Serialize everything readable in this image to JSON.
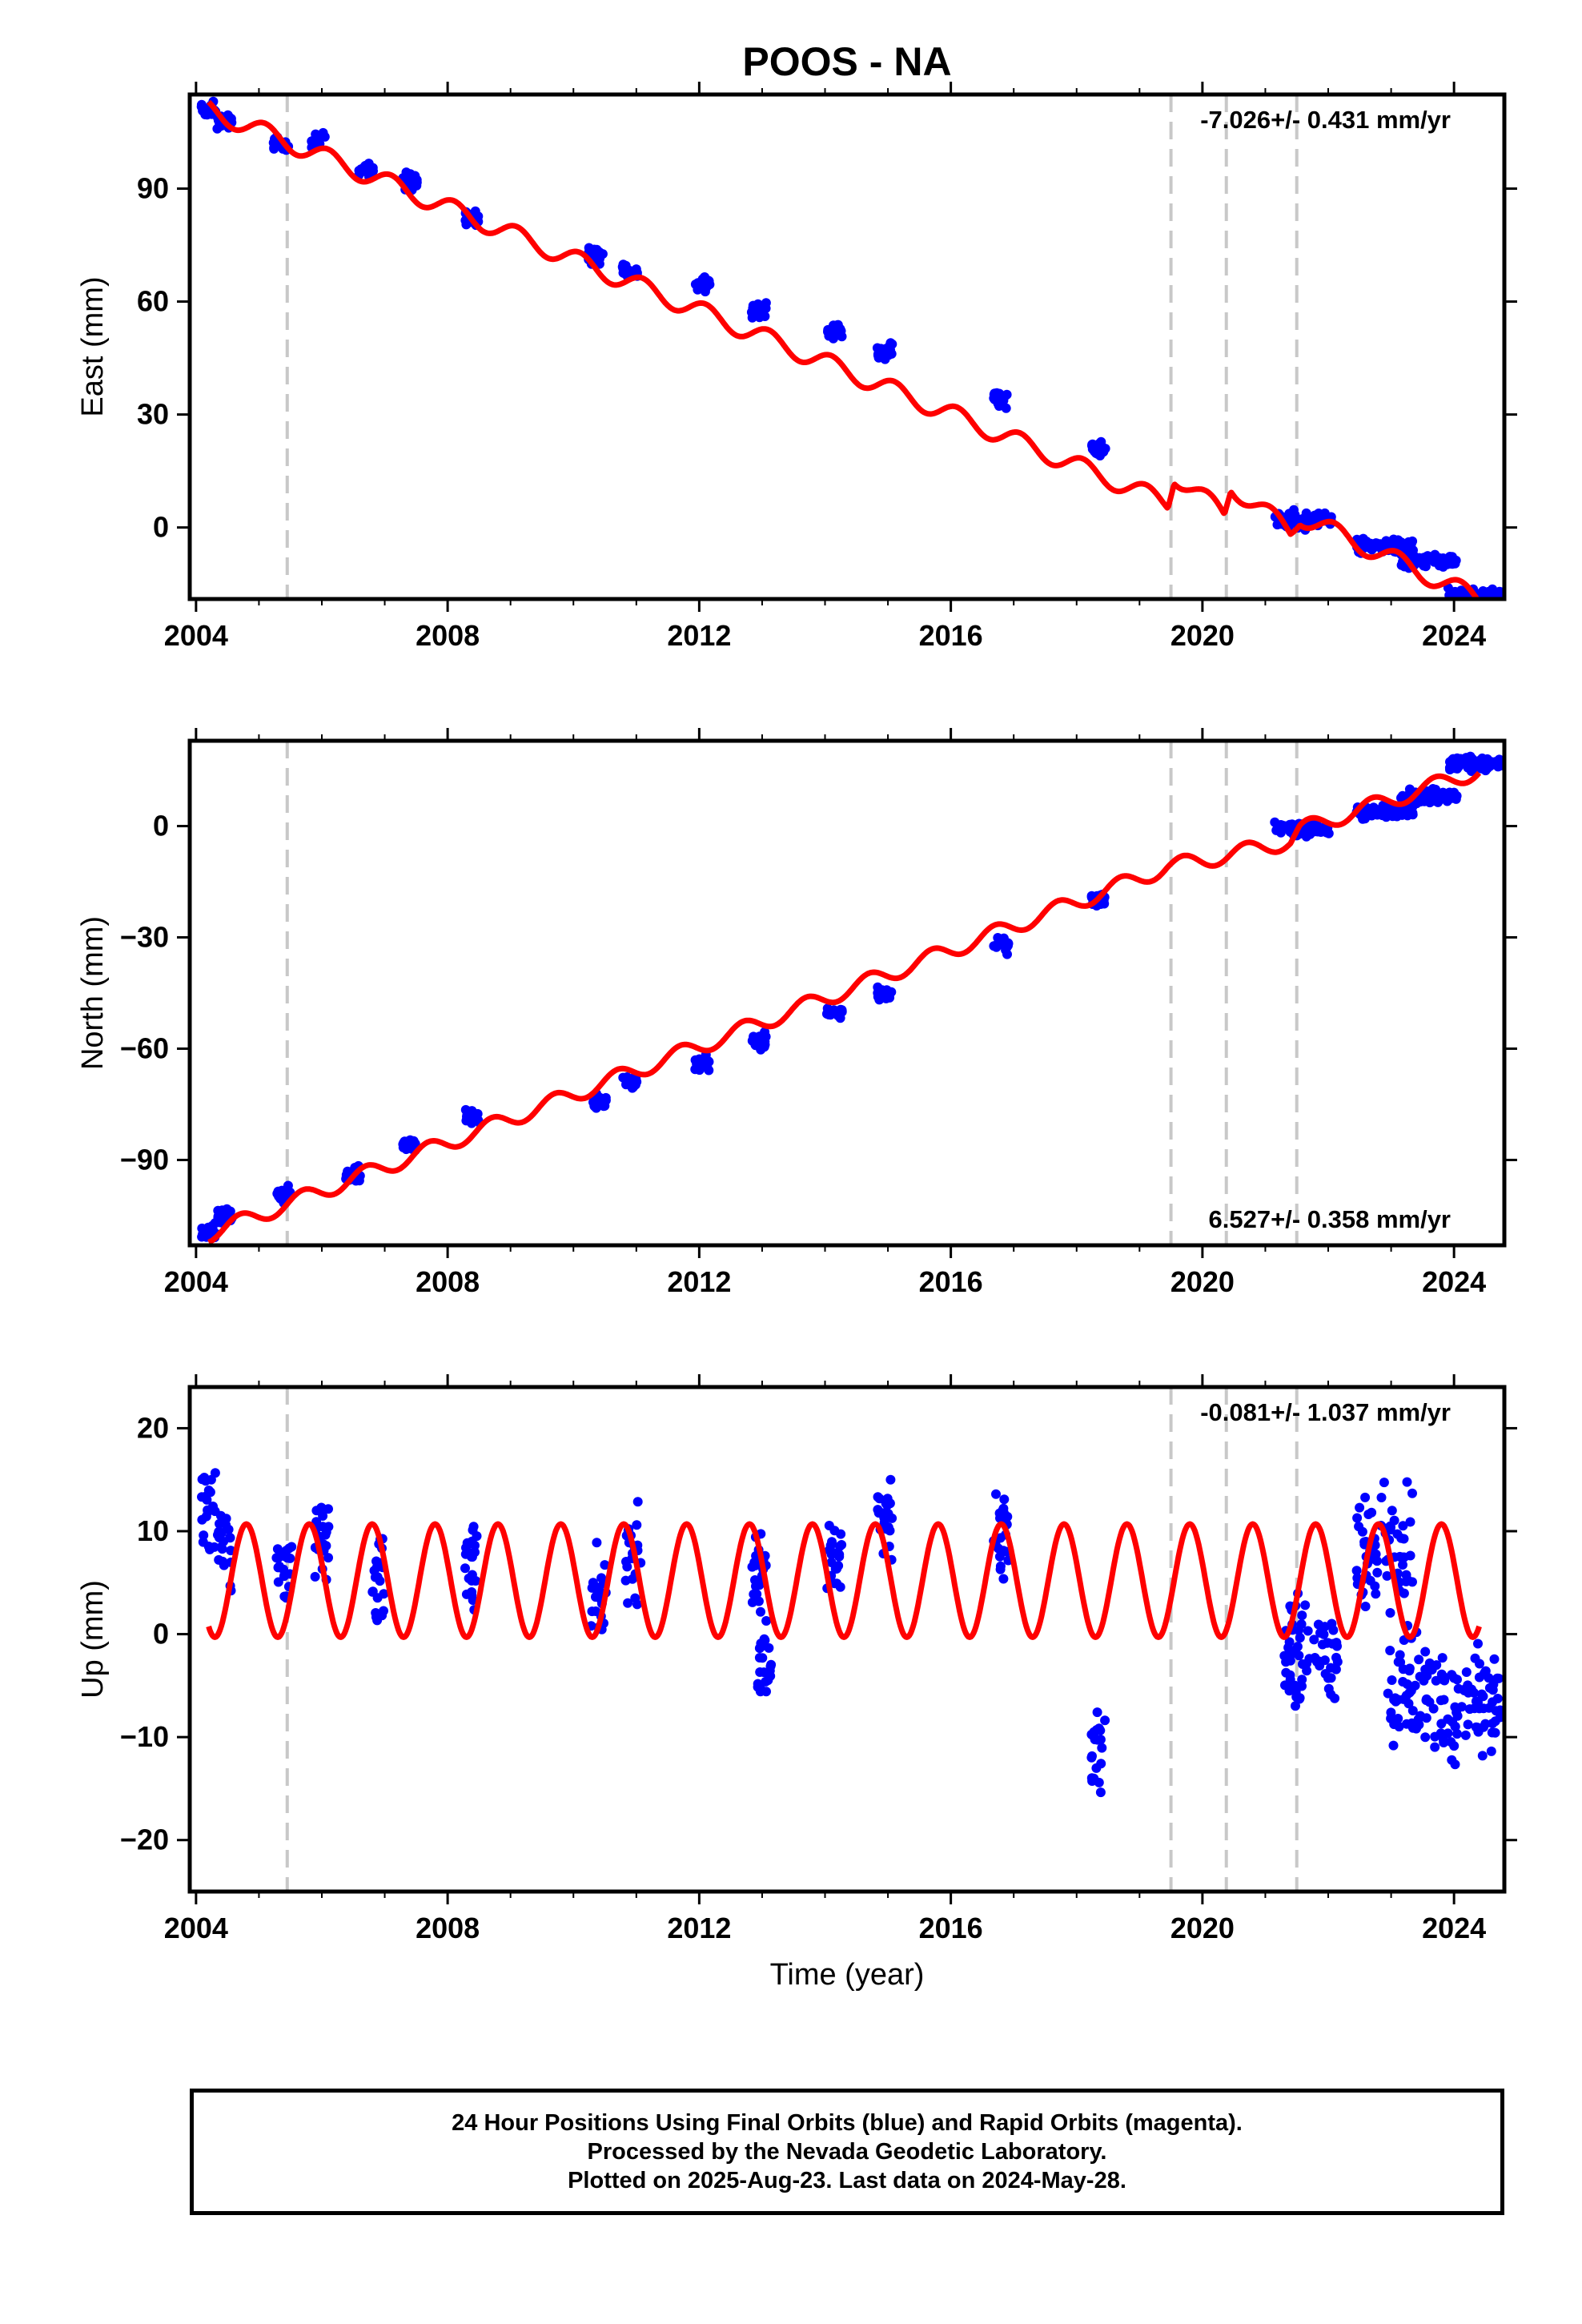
{
  "title": "POOS - NA",
  "xlabel": "Time (year)",
  "footer": {
    "line1": "24 Hour Positions Using Final Orbits (blue) and Rapid Orbits (magenta).",
    "line2": "Processed by the Nevada Geodetic Laboratory.",
    "line3": "Plotted on 2025-Aug-23. Last data on 2024-May-28."
  },
  "colors": {
    "data": "#0000ff",
    "model": "#ff0000",
    "steps": "#c8c8c8",
    "frame": "#000000"
  },
  "chart_data": [
    {
      "type": "scatter",
      "panel": "east",
      "ylabel": "East (mm)",
      "rate_text": "-7.026+/- 0.431 mm/yr",
      "rate_placement": "top-right",
      "xlim": [
        2003.9,
        2024.8
      ],
      "ylim": [
        -19,
        115
      ],
      "xticks": [
        2004,
        2008,
        2012,
        2016,
        2020,
        2024
      ],
      "yticks": [
        0,
        30,
        60,
        90
      ],
      "step_lines": [
        2005.45,
        2019.5,
        2020.38,
        2021.5
      ],
      "data_series": [
        {
          "x": 2004.2,
          "y": 111
        },
        {
          "x": 2004.45,
          "y": 108
        },
        {
          "x": 2005.35,
          "y": 102
        },
        {
          "x": 2005.95,
          "y": 103
        },
        {
          "x": 2006.7,
          "y": 95
        },
        {
          "x": 2007.4,
          "y": 92
        },
        {
          "x": 2008.4,
          "y": 82
        },
        {
          "x": 2010.35,
          "y": 72
        },
        {
          "x": 2010.9,
          "y": 68
        },
        {
          "x": 2012.05,
          "y": 64
        },
        {
          "x": 2012.95,
          "y": 58
        },
        {
          "x": 2014.15,
          "y": 52
        },
        {
          "x": 2014.95,
          "y": 47
        },
        {
          "x": 2016.8,
          "y": 34
        },
        {
          "x": 2018.35,
          "y": 21
        },
        {
          "x": 2021.6,
          "y": 2
        },
        {
          "x": 2022.9,
          "y": -5
        },
        {
          "x": 2023.6,
          "y": -9
        },
        {
          "x": 2024.35,
          "y": -18
        }
      ],
      "model": {
        "anchors": [
          [
            2004.2,
            111
          ],
          [
            2019.45,
            6.5
          ],
          [
            2019.55,
            14
          ],
          [
            2020.35,
            3.5
          ],
          [
            2020.45,
            11
          ],
          [
            2021.4,
            -1
          ],
          [
            2021.55,
            3
          ],
          [
            2024.4,
            -19
          ]
        ],
        "amplitude": 2.5,
        "phase": 0.85
      }
    },
    {
      "type": "scatter",
      "panel": "north",
      "ylabel": "North (mm)",
      "rate_text": "6.527+/- 0.358 mm/yr",
      "rate_placement": "bottom-right",
      "xlim": [
        2003.9,
        2024.8
      ],
      "ylim": [
        -113,
        23
      ],
      "xticks": [
        2004,
        2008,
        2012,
        2016,
        2020,
        2024
      ],
      "yticks": [
        -90,
        -60,
        -30,
        0
      ],
      "step_lines": [
        2005.45,
        2019.5,
        2020.38,
        2021.5
      ],
      "data_series": [
        {
          "x": 2004.2,
          "y": -109
        },
        {
          "x": 2004.45,
          "y": -105
        },
        {
          "x": 2005.4,
          "y": -99
        },
        {
          "x": 2006.5,
          "y": -94
        },
        {
          "x": 2007.4,
          "y": -86
        },
        {
          "x": 2008.4,
          "y": -79
        },
        {
          "x": 2010.4,
          "y": -74
        },
        {
          "x": 2010.9,
          "y": -69
        },
        {
          "x": 2012.05,
          "y": -64
        },
        {
          "x": 2012.95,
          "y": -58
        },
        {
          "x": 2014.15,
          "y": -50
        },
        {
          "x": 2014.95,
          "y": -45
        },
        {
          "x": 2016.8,
          "y": -32
        },
        {
          "x": 2018.35,
          "y": -20
        },
        {
          "x": 2021.6,
          "y": -1
        },
        {
          "x": 2022.9,
          "y": 4
        },
        {
          "x": 2023.6,
          "y": 8
        },
        {
          "x": 2024.35,
          "y": 17
        }
      ],
      "model": {
        "anchors": [
          [
            2004.2,
            -110
          ],
          [
            2019.45,
            -11
          ],
          [
            2020.35,
            -8
          ],
          [
            2021.4,
            -4
          ],
          [
            2021.55,
            -1
          ],
          [
            2024.4,
            15
          ]
        ],
        "amplitude": 2.2,
        "phase": 0.45
      }
    },
    {
      "type": "scatter",
      "panel": "up",
      "ylabel": "Up (mm)",
      "rate_text": "-0.081+/- 1.037 mm/yr",
      "rate_placement": "top-right",
      "xlim": [
        2003.9,
        2024.8
      ],
      "ylim": [
        -25,
        24
      ],
      "xticks": [
        2004,
        2008,
        2012,
        2016,
        2020,
        2024
      ],
      "yticks": [
        -20,
        -10,
        0,
        10,
        20
      ],
      "step_lines": [
        2005.45,
        2019.5,
        2020.38,
        2021.5
      ],
      "data_series": [
        {
          "x": 2004.2,
          "y": 12
        },
        {
          "x": 2004.45,
          "y": 8
        },
        {
          "x": 2005.4,
          "y": 6
        },
        {
          "x": 2006.0,
          "y": 9
        },
        {
          "x": 2006.9,
          "y": 5
        },
        {
          "x": 2008.35,
          "y": 6
        },
        {
          "x": 2010.4,
          "y": 3
        },
        {
          "x": 2010.95,
          "y": 8
        },
        {
          "x": 2012.95,
          "y": 6
        },
        {
          "x": 2013.05,
          "y": -3
        },
        {
          "x": 2014.15,
          "y": 7
        },
        {
          "x": 2014.95,
          "y": 11
        },
        {
          "x": 2016.8,
          "y": 10
        },
        {
          "x": 2018.35,
          "y": -12
        },
        {
          "x": 2021.7,
          "y": -2
        },
        {
          "x": 2022.9,
          "y": 8
        },
        {
          "x": 2023.4,
          "y": -6
        },
        {
          "x": 2024.3,
          "y": -7
        }
      ],
      "model": {
        "mean": 5.2,
        "amplitude": 5.5,
        "phase": 0.55
      }
    }
  ]
}
